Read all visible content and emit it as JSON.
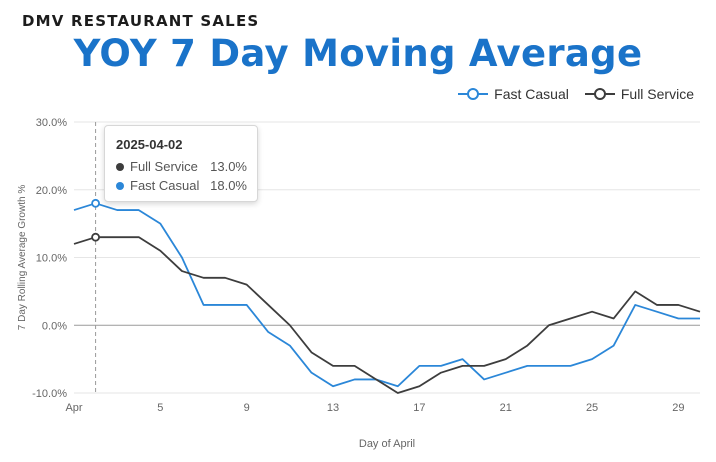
{
  "header": {
    "eyebrow": "DMV RESTAURANT SALES",
    "title": "YOY 7 Day Moving Average"
  },
  "tooltip": {
    "date": "2025-04-02",
    "rows": [
      {
        "name": "Full Service",
        "value": "13.0%"
      },
      {
        "name": "Fast Casual",
        "value": "18.0%"
      }
    ]
  },
  "colors": {
    "fast_casual": "#2b87d8",
    "full_service": "#3d3d3d",
    "title": "#1a73c9"
  },
  "chart_data": {
    "type": "line",
    "xlabel": "Day of April",
    "ylabel": "7 Day Rolling Average Growth %",
    "x_ticks": [
      {
        "day": 1,
        "label": "Apr"
      },
      {
        "day": 5,
        "label": "5"
      },
      {
        "day": 9,
        "label": "9"
      },
      {
        "day": 13,
        "label": "13"
      },
      {
        "day": 17,
        "label": "17"
      },
      {
        "day": 21,
        "label": "21"
      },
      {
        "day": 25,
        "label": "25"
      },
      {
        "day": 29,
        "label": "29"
      }
    ],
    "xlim": [
      1,
      30
    ],
    "y_ticks": [
      {
        "value": 30,
        "label": "30.0%"
      },
      {
        "value": 20,
        "label": "20.0%"
      },
      {
        "value": 10,
        "label": "10.0%"
      },
      {
        "value": 0,
        "label": "0.0%"
      },
      {
        "value": -10,
        "label": "-10.0%"
      }
    ],
    "ylim": [
      -10,
      30
    ],
    "grid": true,
    "legend_position": "top-right",
    "highlight_day": 2,
    "x": [
      1,
      2,
      3,
      4,
      5,
      6,
      7,
      8,
      9,
      10,
      11,
      12,
      13,
      14,
      15,
      16,
      17,
      18,
      19,
      20,
      21,
      22,
      23,
      24,
      25,
      26,
      27,
      28,
      29,
      30
    ],
    "series": [
      {
        "name": "Fast Casual",
        "color": "#2b87d8",
        "values": [
          17,
          18,
          17,
          17,
          15,
          10,
          3,
          3,
          3,
          -1,
          -3,
          -7,
          -9,
          -8,
          -8,
          -9,
          -6,
          -6,
          -5,
          -8,
          -7,
          -6,
          -6,
          -6,
          -5,
          -3,
          3,
          2,
          1,
          1
        ]
      },
      {
        "name": "Full Service",
        "color": "#3d3d3d",
        "values": [
          12,
          13,
          13,
          13,
          11,
          8,
          7,
          7,
          6,
          3,
          0,
          -4,
          -6,
          -6,
          -8,
          -10,
          -9,
          -7,
          -6,
          -6,
          -5,
          -3,
          0,
          1,
          2,
          1,
          5,
          3,
          3,
          2
        ]
      }
    ]
  }
}
